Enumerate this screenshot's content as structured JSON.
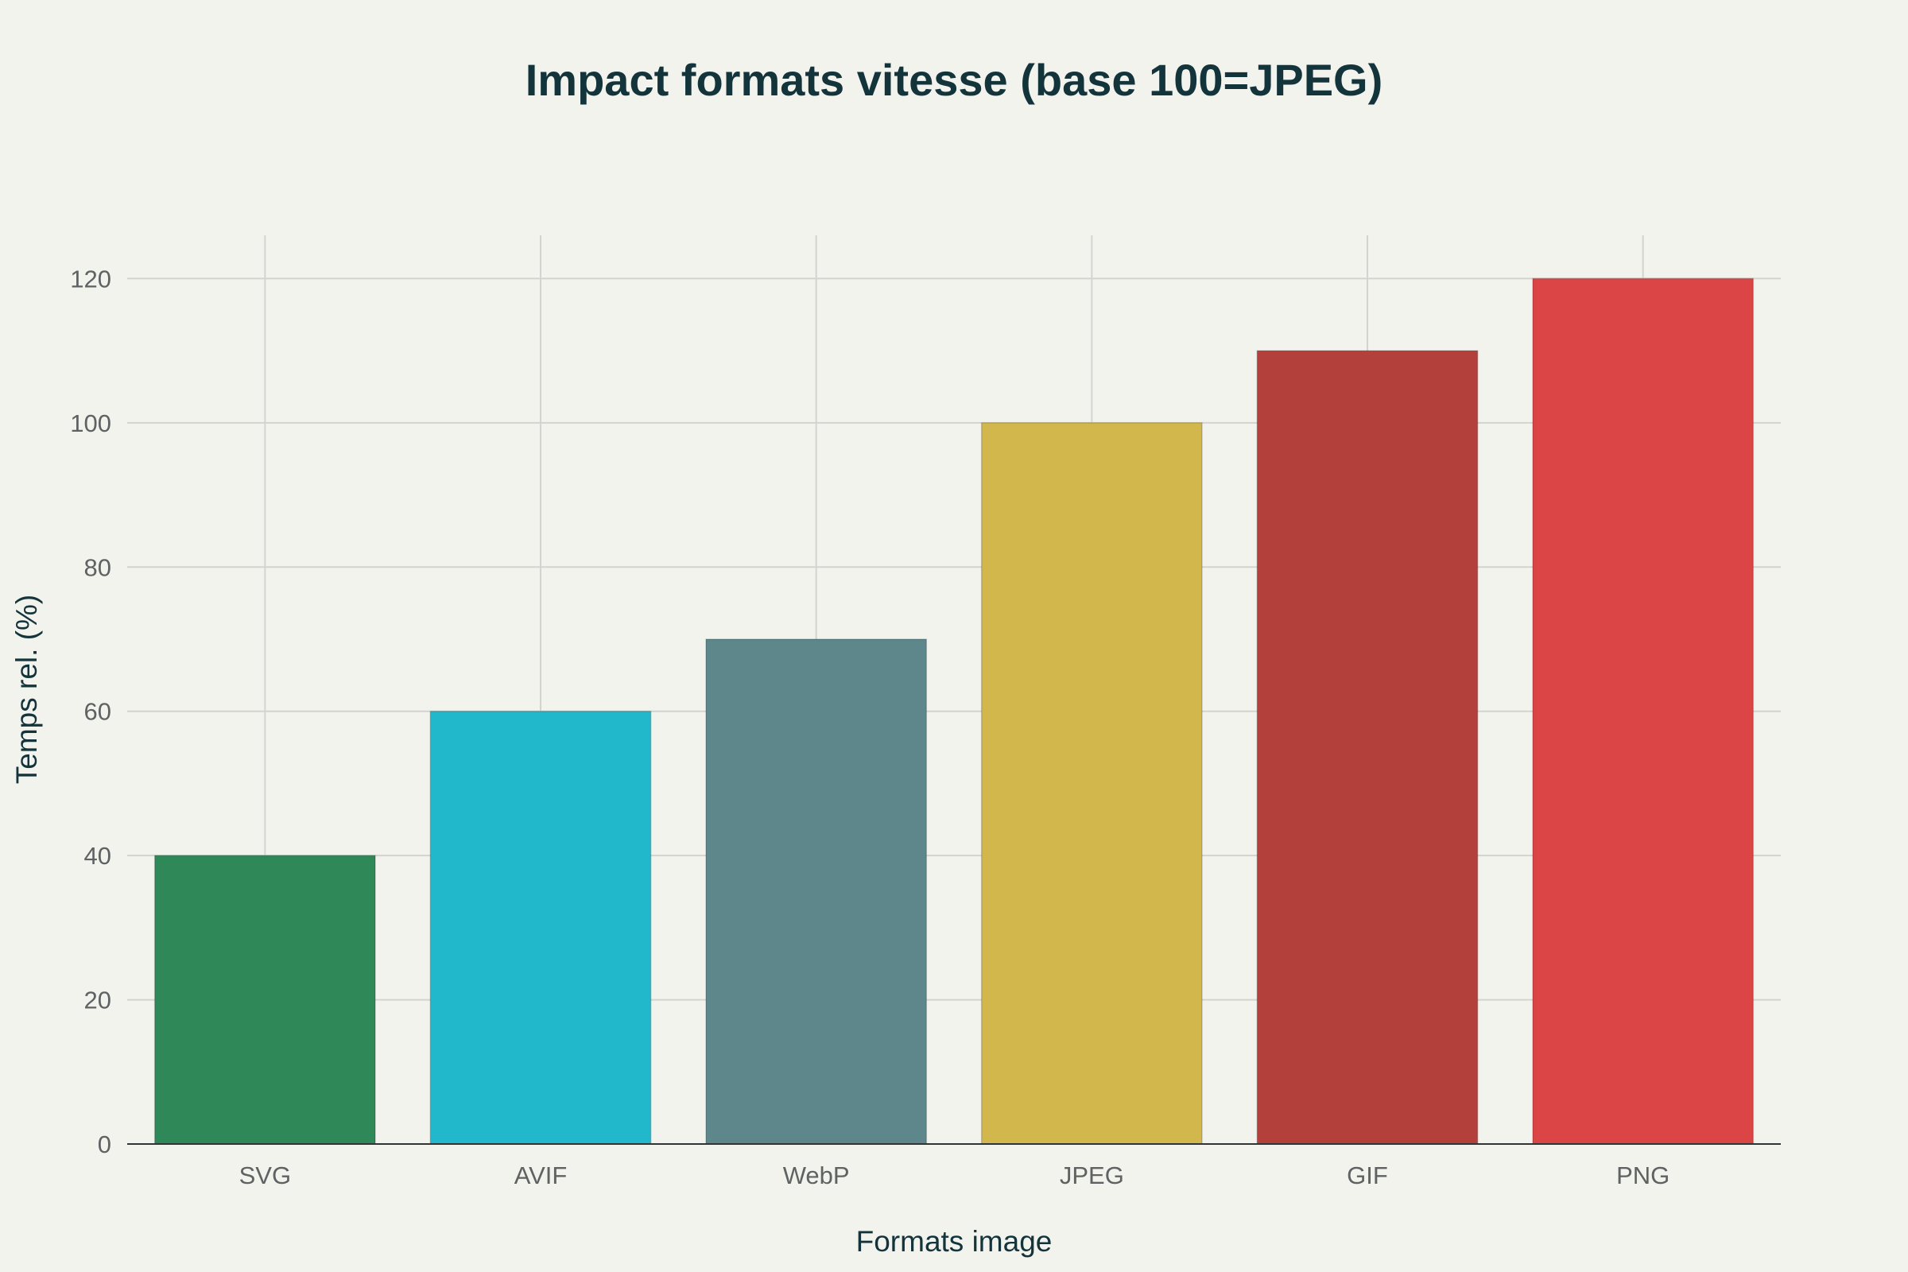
{
  "chart_data": {
    "type": "bar",
    "title": "Impact formats vitesse (base 100=JPEG)",
    "xlabel": "Formats image",
    "ylabel": "Temps rel. (%)",
    "categories": [
      "SVG",
      "AVIF",
      "WebP",
      "JPEG",
      "GIF",
      "PNG"
    ],
    "values": [
      40,
      60,
      70,
      100,
      110,
      120
    ],
    "colors": [
      "#2f8858",
      "#21b8cc",
      "#5d878b",
      "#d2b84c",
      "#b4403c",
      "#db4545"
    ],
    "ylim": [
      0,
      126
    ],
    "yticks": [
      0,
      20,
      40,
      60,
      80,
      100,
      120
    ],
    "grid": true,
    "legend": "none"
  }
}
